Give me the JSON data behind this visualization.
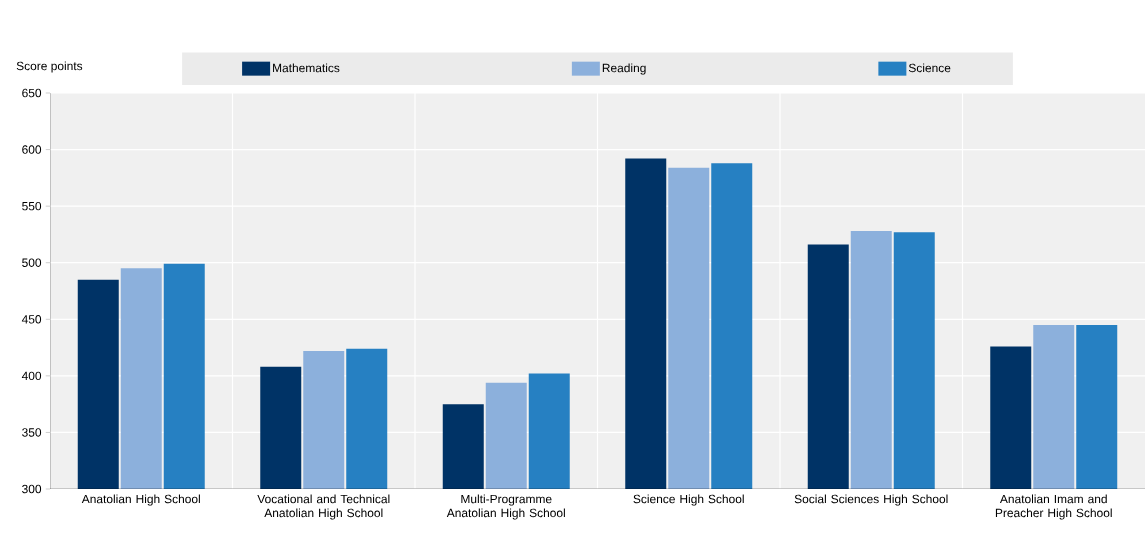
{
  "chart_data": {
    "type": "bar",
    "ylabel": "Score points",
    "categories": [
      "Anatolian High School",
      "Vocational and Technical Anatolian High School",
      "Multi-Programme Anatolian High School",
      "Science High School",
      "Social Sciences High School",
      "Anatolian Imam and Preacher High School"
    ],
    "series": [
      {
        "name": "Mathematics",
        "color": "#003366",
        "values": [
          485,
          408,
          375,
          592,
          516,
          426
        ]
      },
      {
        "name": "Reading",
        "color": "#8cb0dc",
        "values": [
          495,
          422,
          394,
          584,
          528,
          445
        ]
      },
      {
        "name": "Science",
        "color": "#2680c2",
        "values": [
          499,
          424,
          402,
          588,
          527,
          445
        ]
      }
    ],
    "ylim": [
      300,
      650
    ],
    "yticks": [
      300,
      350,
      400,
      450,
      500,
      550,
      600,
      650
    ],
    "grid": "y",
    "legend": "top"
  }
}
